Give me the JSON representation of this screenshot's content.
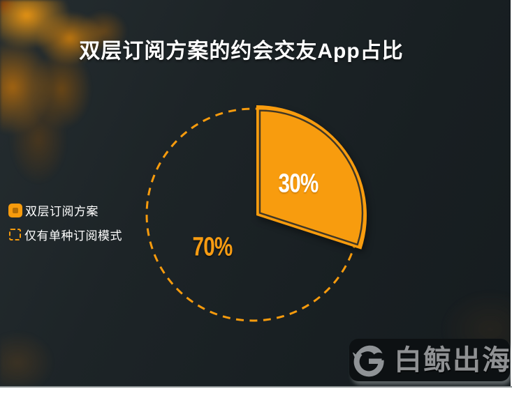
{
  "title": "双层订阅方案的约会交友App占比",
  "legend": {
    "items": [
      {
        "label": "双层订阅方案",
        "icon": "solid-square-swatch-icon"
      },
      {
        "label": "仅有单种订阅模式",
        "icon": "dashed-square-swatch-icon"
      }
    ]
  },
  "chart_data": {
    "type": "pie",
    "title": "双层订阅方案的约会交友App占比",
    "categories": [
      "双层订阅方案",
      "仅有单种订阅模式"
    ],
    "values": [
      30,
      70
    ],
    "slices": [
      {
        "label": "双层订阅方案",
        "value": 30,
        "display": "30%",
        "render": "solid-filled-exploded",
        "color": "#F89C0E",
        "label_color": "#FFFFFF"
      },
      {
        "label": "仅有单种订阅模式",
        "value": 70,
        "display": "70%",
        "render": "dashed-outline-empty",
        "color": "#F79B0D",
        "label_color": "#F89C12"
      }
    ],
    "start_angle_deg": 0,
    "direction": "clockwise",
    "legend_position": "middle-left"
  },
  "watermark": {
    "text": "白鲸出海",
    "logo_icon": "whale-g-logo-icon"
  },
  "colors": {
    "accent_orange": "#F79B0D",
    "slice_fill": "#F89C0E",
    "background_dark": "#1B2225",
    "title_text": "#FFFFFF",
    "legend_text": "#FFFFFF",
    "watermark_text": "#8F9193",
    "watermark_badge": "#0D1113",
    "page_margin": "#FFFFFF"
  }
}
